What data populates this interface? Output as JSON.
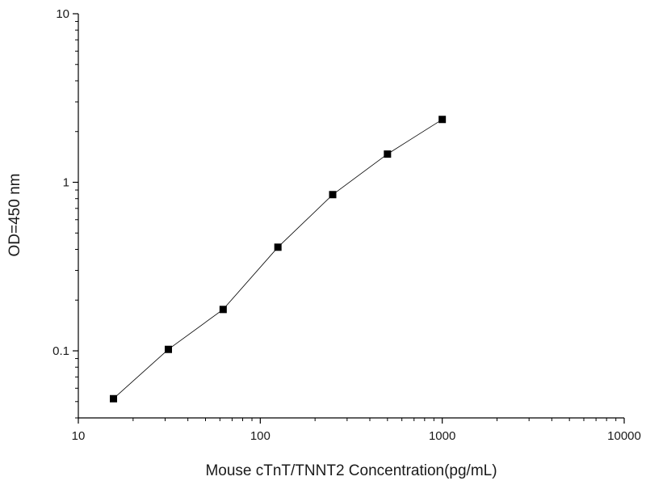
{
  "chart_data": {
    "type": "line",
    "xlabel": "Mouse cTnT/TNNT2 Concentration(pg/mL)",
    "ylabel": "OD=450 nm",
    "xscale": "log",
    "yscale": "log",
    "xlim": [
      10,
      10000
    ],
    "ylim": [
      0.04,
      10
    ],
    "x_ticks": [
      10,
      100,
      1000,
      10000
    ],
    "x_tick_labels": [
      "10",
      "100",
      "1000",
      "10000"
    ],
    "y_ticks": [
      0.1,
      1,
      10
    ],
    "y_tick_labels": [
      "0.1",
      "1",
      "10"
    ],
    "grid": false,
    "legend": "none",
    "marker": "square",
    "line_color": "#000000",
    "marker_color": "#000000",
    "series": [
      {
        "x": [
          15.6,
          31.25,
          62.5,
          125,
          250,
          500,
          1000
        ],
        "y": [
          0.052,
          0.102,
          0.176,
          0.412,
          0.845,
          1.47,
          2.36
        ]
      }
    ]
  }
}
